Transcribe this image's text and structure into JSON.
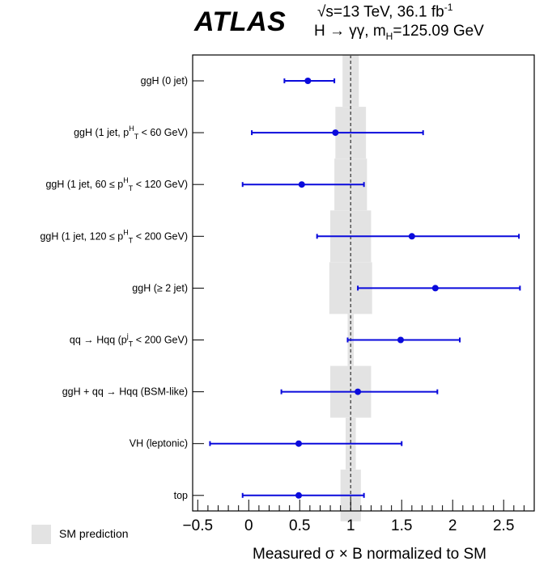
{
  "header": {
    "experiment": "ATLAS",
    "energy_prefix": "√s=13 TeV, 36.1 fb",
    "energy_sup": "-1",
    "channel_prefix": "H → γγ,  m",
    "channel_sub": "H",
    "channel_suffix": "=125.09 GeV"
  },
  "legend": {
    "sm_label": "SM prediction",
    "sm_color": "#e3e3e3"
  },
  "colors": {
    "point": "#0a0adc",
    "sm_band": "#e3e3e3",
    "sm_line": "#555555"
  },
  "chart_data": {
    "type": "scatter",
    "orientation": "horizontal",
    "xlabel": "Measured σ × B normalized to SM",
    "xlim": [
      -0.55,
      2.8
    ],
    "xticks": [
      -0.5,
      0,
      0.5,
      1,
      1.5,
      2,
      2.5
    ],
    "xtick_labels": [
      "−0.5",
      "0",
      "0.5",
      "1",
      "1.5",
      "2",
      "2.5"
    ],
    "sm_reference": 1,
    "categories": [
      {
        "label": "ggH (0 jet)",
        "value": 0.58,
        "err_low": 0.35,
        "err_high": 0.84,
        "sm_low": 0.92,
        "sm_high": 1.08
      },
      {
        "label": "ggH (1 jet, p_T^H < 60 GeV)",
        "value": 0.85,
        "err_low": 0.03,
        "err_high": 1.71,
        "sm_low": 0.85,
        "sm_high": 1.15
      },
      {
        "label": "ggH (1 jet, 60 ≤ p_T^H < 120 GeV)",
        "value": 0.52,
        "err_low": -0.06,
        "err_high": 1.13,
        "sm_low": 0.84,
        "sm_high": 1.16
      },
      {
        "label": "ggH (1 jet, 120 ≤ p_T^H < 200 GeV)",
        "value": 1.6,
        "err_low": 0.67,
        "err_high": 2.65,
        "sm_low": 0.8,
        "sm_high": 1.2
      },
      {
        "label": "ggH (≥ 2 jet)",
        "value": 1.83,
        "err_low": 1.07,
        "err_high": 2.66,
        "sm_low": 0.79,
        "sm_high": 1.21
      },
      {
        "label": "qq → Hqq (p_T^j < 200 GeV)",
        "value": 1.49,
        "err_low": 0.97,
        "err_high": 2.07,
        "sm_low": 0.97,
        "sm_high": 1.03
      },
      {
        "label": "ggH + qq → Hqq (BSM-like)",
        "value": 1.07,
        "err_low": 0.32,
        "err_high": 1.85,
        "sm_low": 0.8,
        "sm_high": 1.2
      },
      {
        "label": "VH (leptonic)",
        "value": 0.49,
        "err_low": -0.38,
        "err_high": 1.5,
        "sm_low": 0.95,
        "sm_high": 1.05
      },
      {
        "label": "top",
        "value": 0.49,
        "err_low": -0.06,
        "err_high": 1.13,
        "sm_low": 0.9,
        "sm_high": 1.1
      }
    ]
  }
}
